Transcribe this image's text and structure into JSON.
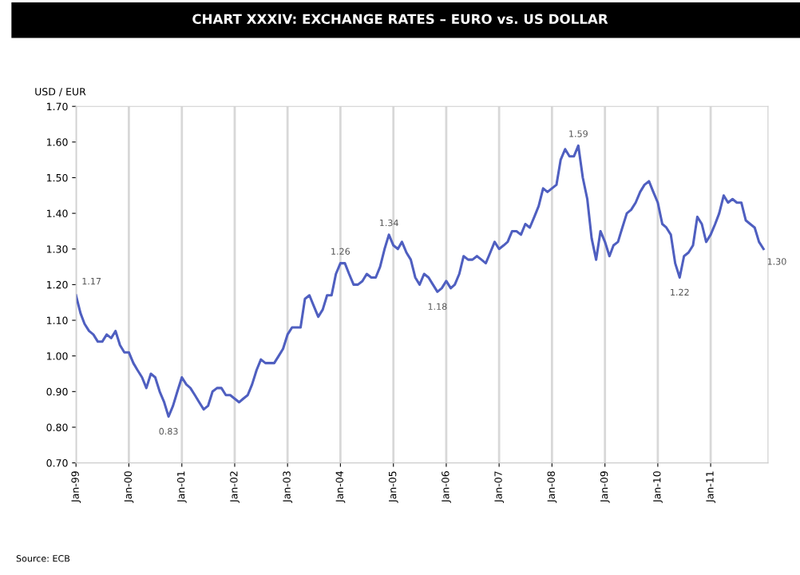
{
  "chart_data": {
    "type": "line",
    "title": "CHART XXXIV: EXCHANGE RATES – EURO vs. US DOLLAR",
    "ylabel": "USD / EUR",
    "x": [
      "1999-01",
      "1999-02",
      "1999-03",
      "1999-04",
      "1999-05",
      "1999-06",
      "1999-07",
      "1999-08",
      "1999-09",
      "1999-10",
      "1999-11",
      "1999-12",
      "2000-01",
      "2000-02",
      "2000-03",
      "2000-04",
      "2000-05",
      "2000-06",
      "2000-07",
      "2000-08",
      "2000-09",
      "2000-10",
      "2000-11",
      "2000-12",
      "2001-01",
      "2001-02",
      "2001-03",
      "2001-04",
      "2001-05",
      "2001-06",
      "2001-07",
      "2001-08",
      "2001-09",
      "2001-10",
      "2001-11",
      "2001-12",
      "2002-01",
      "2002-02",
      "2002-03",
      "2002-04",
      "2002-05",
      "2002-06",
      "2002-07",
      "2002-08",
      "2002-09",
      "2002-10",
      "2002-11",
      "2002-12",
      "2003-01",
      "2003-02",
      "2003-03",
      "2003-04",
      "2003-05",
      "2003-06",
      "2003-07",
      "2003-08",
      "2003-09",
      "2003-10",
      "2003-11",
      "2003-12",
      "2004-01",
      "2004-02",
      "2004-03",
      "2004-04",
      "2004-05",
      "2004-06",
      "2004-07",
      "2004-08",
      "2004-09",
      "2004-10",
      "2004-11",
      "2004-12",
      "2005-01",
      "2005-02",
      "2005-03",
      "2005-04",
      "2005-05",
      "2005-06",
      "2005-07",
      "2005-08",
      "2005-09",
      "2005-10",
      "2005-11",
      "2005-12",
      "2006-01",
      "2006-02",
      "2006-03",
      "2006-04",
      "2006-05",
      "2006-06",
      "2006-07",
      "2006-08",
      "2006-09",
      "2006-10",
      "2006-11",
      "2006-12",
      "2007-01",
      "2007-02",
      "2007-03",
      "2007-04",
      "2007-05",
      "2007-06",
      "2007-07",
      "2007-08",
      "2007-09",
      "2007-10",
      "2007-11",
      "2007-12",
      "2008-01",
      "2008-02",
      "2008-03",
      "2008-04",
      "2008-05",
      "2008-06",
      "2008-07",
      "2008-08",
      "2008-09",
      "2008-10",
      "2008-11",
      "2008-12",
      "2009-01",
      "2009-02",
      "2009-03",
      "2009-04",
      "2009-05",
      "2009-06",
      "2009-07",
      "2009-08",
      "2009-09",
      "2009-10",
      "2009-11",
      "2009-12",
      "2010-01",
      "2010-02",
      "2010-03",
      "2010-04",
      "2010-05",
      "2010-06",
      "2010-07",
      "2010-08",
      "2010-09",
      "2010-10",
      "2010-11",
      "2010-12",
      "2011-01",
      "2011-02",
      "2011-03",
      "2011-04",
      "2011-05",
      "2011-06",
      "2011-07",
      "2011-08",
      "2011-09",
      "2011-10",
      "2011-11",
      "2011-12",
      "2012-01"
    ],
    "series": [
      {
        "color": "#4f5fc0",
        "values": [
          1.17,
          1.12,
          1.09,
          1.07,
          1.06,
          1.04,
          1.04,
          1.06,
          1.05,
          1.07,
          1.03,
          1.01,
          1.01,
          0.98,
          0.96,
          0.94,
          0.91,
          0.95,
          0.94,
          0.9,
          0.87,
          0.83,
          0.86,
          0.9,
          0.94,
          0.92,
          0.91,
          0.89,
          0.87,
          0.85,
          0.86,
          0.9,
          0.91,
          0.91,
          0.89,
          0.89,
          0.88,
          0.87,
          0.88,
          0.89,
          0.92,
          0.96,
          0.99,
          0.98,
          0.98,
          0.98,
          1.0,
          1.02,
          1.06,
          1.08,
          1.08,
          1.08,
          1.16,
          1.17,
          1.14,
          1.11,
          1.13,
          1.17,
          1.17,
          1.23,
          1.26,
          1.26,
          1.23,
          1.2,
          1.2,
          1.21,
          1.23,
          1.22,
          1.22,
          1.25,
          1.3,
          1.34,
          1.31,
          1.3,
          1.32,
          1.29,
          1.27,
          1.22,
          1.2,
          1.23,
          1.22,
          1.2,
          1.18,
          1.19,
          1.21,
          1.19,
          1.2,
          1.23,
          1.28,
          1.27,
          1.27,
          1.28,
          1.27,
          1.26,
          1.29,
          1.32,
          1.3,
          1.31,
          1.32,
          1.35,
          1.35,
          1.34,
          1.37,
          1.36,
          1.39,
          1.42,
          1.47,
          1.46,
          1.47,
          1.48,
          1.55,
          1.58,
          1.56,
          1.56,
          1.59,
          1.5,
          1.44,
          1.33,
          1.27,
          1.35,
          1.32,
          1.28,
          1.31,
          1.32,
          1.36,
          1.4,
          1.41,
          1.43,
          1.46,
          1.48,
          1.49,
          1.46,
          1.43,
          1.37,
          1.36,
          1.34,
          1.26,
          1.22,
          1.28,
          1.29,
          1.31,
          1.39,
          1.37,
          1.32,
          1.34,
          1.37,
          1.4,
          1.45,
          1.43,
          1.44,
          1.43,
          1.43,
          1.38,
          1.37,
          1.36,
          1.32,
          1.3
        ]
      }
    ],
    "xlim": [
      "1999-01",
      "2012-02"
    ],
    "xticks": [
      {
        "value": "1999-01",
        "label": "Jan-99"
      },
      {
        "value": "2000-01",
        "label": "Jan-00"
      },
      {
        "value": "2001-01",
        "label": "Jan-01"
      },
      {
        "value": "2002-01",
        "label": "Jan-02"
      },
      {
        "value": "2003-01",
        "label": "Jan-03"
      },
      {
        "value": "2004-01",
        "label": "Jan-04"
      },
      {
        "value": "2005-01",
        "label": "Jan-05"
      },
      {
        "value": "2006-01",
        "label": "Jan-06"
      },
      {
        "value": "2007-01",
        "label": "Jan-07"
      },
      {
        "value": "2008-01",
        "label": "Jan-08"
      },
      {
        "value": "2009-01",
        "label": "Jan-09"
      },
      {
        "value": "2010-01",
        "label": "Jan-10"
      },
      {
        "value": "2011-01",
        "label": "Jan-11"
      }
    ],
    "ylim": [
      0.7,
      1.7
    ],
    "yticks": [
      {
        "value": 0.7,
        "label": "0.70"
      },
      {
        "value": 0.8,
        "label": "0.80"
      },
      {
        "value": 0.9,
        "label": "0.90"
      },
      {
        "value": 1.0,
        "label": "1.00"
      },
      {
        "value": 1.1,
        "label": "1.10"
      },
      {
        "value": 1.2,
        "label": "1.20"
      },
      {
        "value": 1.3,
        "label": "1.30"
      },
      {
        "value": 1.4,
        "label": "1.40"
      },
      {
        "value": 1.5,
        "label": "1.50"
      },
      {
        "value": 1.6,
        "label": "1.60"
      },
      {
        "value": 1.7,
        "label": "1.70"
      }
    ],
    "grid": "x",
    "marker": "none",
    "line_style": "solid",
    "legend": false,
    "annotations": [
      {
        "text": "1.17",
        "x": "1999-01",
        "y": 1.17
      },
      {
        "text": "0.83",
        "x": "2000-10",
        "y": 0.83
      },
      {
        "text": "1.26",
        "x": "2004-01",
        "y": 1.26
      },
      {
        "text": "1.34",
        "x": "2004-12",
        "y": 1.34
      },
      {
        "text": "1.18",
        "x": "2005-11",
        "y": 1.18
      },
      {
        "text": "1.59",
        "x": "2008-07",
        "y": 1.59
      },
      {
        "text": "1.22",
        "x": "2010-06",
        "y": 1.22
      },
      {
        "text": "1.30",
        "x": "2012-01",
        "y": 1.3
      },
      "Source: ECB"
    ]
  }
}
